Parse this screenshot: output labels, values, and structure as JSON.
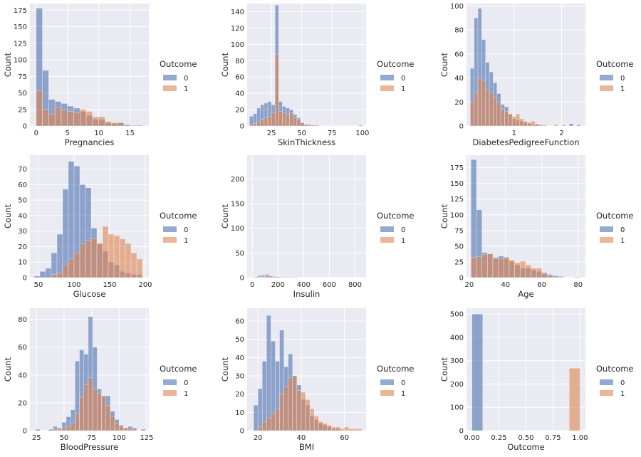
{
  "figure": {
    "type": "histogram-grid",
    "style": {
      "panel_bg": "#EAEAF2",
      "grid": "#FFFFFF",
      "color_0": "#4C72B0",
      "color_1": "#DD8452",
      "bar_alpha": 0.6
    }
  },
  "chart_data": [
    {
      "type": "bar",
      "xlabel": "Pregnancies",
      "ylabel": "Count",
      "xlim": [
        -1,
        18
      ],
      "ylim": [
        0,
        185
      ],
      "xticks": [
        0,
        5,
        10,
        15
      ],
      "yticks": [
        0,
        25,
        50,
        75,
        100,
        125,
        150,
        175
      ],
      "bin_edges": [
        0,
        1,
        2,
        3,
        4,
        5,
        6,
        7,
        8,
        9,
        10,
        11,
        12,
        13,
        14,
        15,
        16,
        17
      ],
      "series": [
        {
          "name": "0",
          "values": [
            178,
            84,
            40,
            37,
            34,
            30,
            27,
            22,
            16,
            10,
            10,
            5,
            4,
            5,
            2,
            0,
            1
          ]
        },
        {
          "name": "1",
          "values": [
            53,
            25,
            18,
            28,
            24,
            22,
            20,
            25,
            22,
            14,
            14,
            7,
            5,
            5,
            0,
            1,
            0
          ]
        }
      ],
      "legend": {
        "title": "Outcome",
        "labels": [
          "0",
          "1"
        ],
        "location": "right"
      }
    },
    {
      "type": "bar",
      "xlabel": "SkinThickness",
      "ylabel": "Count",
      "xlim": [
        5,
        103
      ],
      "ylim": [
        0,
        150
      ],
      "xticks": [
        25,
        50,
        75,
        100
      ],
      "yticks": [
        0,
        20,
        40,
        60,
        80,
        100,
        120,
        140
      ],
      "bin_edges": [
        7,
        10,
        13,
        16,
        19,
        22,
        25,
        28,
        31,
        34,
        37,
        40,
        43,
        46,
        49,
        52,
        55,
        58,
        61,
        64,
        67,
        70,
        73,
        76,
        79,
        82,
        85,
        88,
        91,
        94,
        97,
        100
      ],
      "series": [
        {
          "name": "0",
          "values": [
            12,
            15,
            22,
            26,
            28,
            30,
            26,
            148,
            30,
            24,
            22,
            20,
            14,
            10,
            4,
            2,
            2,
            1,
            1,
            0,
            0,
            0,
            0,
            0,
            0,
            0,
            0,
            0,
            0,
            0,
            1
          ]
        },
        {
          "name": "1",
          "values": [
            1,
            3,
            5,
            8,
            10,
            12,
            16,
            88,
            18,
            16,
            14,
            16,
            10,
            8,
            4,
            2,
            1,
            1,
            0,
            0,
            0,
            0,
            0,
            0,
            0,
            0,
            0,
            0,
            0,
            0,
            0
          ]
        }
      ],
      "legend": {
        "title": "Outcome",
        "labels": [
          "0",
          "1"
        ],
        "location": "right"
      }
    },
    {
      "type": "bar",
      "xlabel": "DiabetesPedigreeFunction",
      "ylabel": "Count",
      "xlim": [
        0,
        2.5
      ],
      "ylim": [
        0,
        102
      ],
      "xticks": [
        1,
        2
      ],
      "yticks": [
        0,
        20,
        40,
        60,
        80,
        100
      ],
      "bin_edges": [
        0.08,
        0.16,
        0.24,
        0.32,
        0.4,
        0.48,
        0.56,
        0.64,
        0.72,
        0.8,
        0.88,
        0.96,
        1.04,
        1.12,
        1.2,
        1.28,
        1.36,
        1.44,
        1.52,
        1.6,
        1.68,
        1.76,
        1.84,
        1.92,
        2.0,
        2.08,
        2.16,
        2.24,
        2.32,
        2.4
      ],
      "series": [
        {
          "name": "0",
          "values": [
            48,
            90,
            98,
            72,
            53,
            45,
            36,
            27,
            18,
            16,
            10,
            6,
            5,
            4,
            3,
            2,
            1,
            1,
            1,
            0,
            0,
            0,
            0,
            0,
            0,
            0,
            2,
            0,
            1
          ]
        },
        {
          "name": "1",
          "values": [
            20,
            28,
            40,
            38,
            30,
            28,
            24,
            20,
            14,
            12,
            10,
            8,
            10,
            6,
            4,
            3,
            4,
            2,
            0,
            1,
            0,
            0,
            1,
            0,
            1,
            0,
            0,
            0,
            0
          ]
        }
      ],
      "legend": {
        "title": "Outcome",
        "labels": [
          "0",
          "1"
        ],
        "location": "right"
      }
    },
    {
      "type": "bar",
      "xlabel": "Glucose",
      "ylabel": "Count",
      "xlim": [
        38,
        205
      ],
      "ylim": [
        0,
        79
      ],
      "xticks": [
        50,
        100,
        150,
        200
      ],
      "yticks": [
        0,
        10,
        20,
        30,
        40,
        50,
        60,
        70
      ],
      "bin_edges": [
        44,
        52,
        60,
        68,
        76,
        84,
        92,
        100,
        108,
        116,
        124,
        132,
        140,
        148,
        156,
        164,
        172,
        180,
        188,
        196
      ],
      "series": [
        {
          "name": "0",
          "values": [
            1,
            4,
            6,
            16,
            28,
            57,
            75,
            72,
            60,
            58,
            32,
            22,
            17,
            10,
            8,
            4,
            3,
            2,
            2
          ]
        },
        {
          "name": "1",
          "values": [
            0,
            0,
            0,
            2,
            3,
            8,
            12,
            16,
            22,
            24,
            25,
            22,
            33,
            28,
            27,
            25,
            22,
            16,
            12
          ]
        }
      ],
      "legend": {
        "title": "Outcome",
        "labels": [
          "0",
          "1"
        ],
        "location": "right"
      }
    },
    {
      "type": "bar",
      "xlabel": "Insulin",
      "ylabel": "Count",
      "xlim": [
        -40,
        886
      ],
      "ylim": [
        0,
        248
      ],
      "xticks": [
        0,
        200,
        400,
        600,
        800
      ],
      "yticks": [
        0,
        50,
        100,
        150,
        200
      ],
      "bin_edges": [
        14,
        30,
        46,
        62,
        78,
        94,
        110,
        126,
        142,
        158,
        174,
        190,
        206,
        222,
        238,
        254,
        270,
        286,
        302,
        318,
        334,
        350
      ],
      "series": [
        {
          "name": "0",
          "values": [
            1,
            2,
            5,
            4,
            6,
            5,
            7,
            4,
            3,
            3,
            2,
            2,
            1,
            1,
            1,
            1,
            1,
            0,
            1,
            0,
            1
          ]
        },
        {
          "name": "1",
          "values": [
            0,
            0,
            1,
            1,
            2,
            2,
            3,
            3,
            3,
            2,
            2,
            2,
            2,
            1,
            1,
            1,
            1,
            1,
            0,
            1,
            0
          ]
        }
      ],
      "legend": {
        "title": "Outcome",
        "labels": [
          "0",
          "1"
        ],
        "location": "right"
      }
    },
    {
      "type": "bar",
      "xlabel": "Age",
      "ylabel": "Count",
      "xlim": [
        18.5,
        84
      ],
      "ylim": [
        0,
        195
      ],
      "xticks": [
        20,
        40,
        60,
        80
      ],
      "yticks": [
        0,
        25,
        50,
        75,
        100,
        125,
        150,
        175
      ],
      "bin_edges": [
        21,
        24,
        27,
        30,
        33,
        36,
        39,
        42,
        45,
        48,
        51,
        54,
        57,
        60,
        63,
        66,
        69,
        72,
        75,
        78,
        81
      ],
      "series": [
        {
          "name": "0",
          "values": [
            188,
            108,
            40,
            38,
            32,
            34,
            30,
            26,
            20,
            15,
            15,
            12,
            10,
            8,
            5,
            3,
            2,
            0,
            0,
            1
          ]
        },
        {
          "name": "1",
          "values": [
            32,
            33,
            37,
            38,
            30,
            30,
            33,
            28,
            24,
            26,
            20,
            15,
            15,
            6,
            3,
            1,
            1,
            0,
            0,
            0
          ]
        }
      ],
      "legend": {
        "title": "Outcome",
        "labels": [
          "0",
          "1"
        ],
        "location": "right"
      }
    },
    {
      "type": "bar",
      "xlabel": "BloodPressure",
      "ylabel": "Count",
      "xlim": [
        19,
        127
      ],
      "ylim": [
        0,
        88
      ],
      "xticks": [
        25,
        50,
        75,
        100,
        125
      ],
      "yticks": [
        0,
        20,
        40,
        60,
        80
      ],
      "bin_edges": [
        24,
        28,
        32,
        36,
        40,
        44,
        48,
        52,
        56,
        60,
        64,
        68,
        72,
        76,
        80,
        84,
        88,
        92,
        96,
        100,
        104,
        108,
        112,
        116,
        120,
        124
      ],
      "series": [
        {
          "name": "0",
          "values": [
            1,
            0,
            0,
            1,
            3,
            2,
            6,
            10,
            15,
            50,
            58,
            55,
            82,
            60,
            30,
            25,
            25,
            14,
            8,
            4,
            2,
            3,
            2,
            0,
            1
          ]
        },
        {
          "name": "1",
          "values": [
            0,
            0,
            0,
            0,
            1,
            1,
            2,
            3,
            5,
            12,
            24,
            33,
            38,
            30,
            27,
            25,
            18,
            10,
            5,
            3,
            2,
            1,
            1,
            0,
            1
          ]
        }
      ],
      "legend": {
        "title": "Outcome",
        "labels": [
          "0",
          "1"
        ],
        "location": "right"
      }
    },
    {
      "type": "bar",
      "xlabel": "BMI",
      "ylabel": "Count",
      "xlim": [
        15,
        70
      ],
      "ylim": [
        0,
        67
      ],
      "xticks": [
        20,
        40,
        60
      ],
      "yticks": [
        0,
        10,
        20,
        30,
        40,
        50,
        60
      ],
      "bin_edges": [
        18,
        20,
        22,
        24,
        26,
        28,
        30,
        32,
        34,
        36,
        38,
        40,
        42,
        44,
        46,
        48,
        50,
        52,
        54,
        56,
        58,
        60,
        62,
        64,
        66,
        68
      ],
      "series": [
        {
          "name": "0",
          "values": [
            14,
            23,
            38,
            63,
            49,
            38,
            55,
            35,
            42,
            30,
            25,
            17,
            14,
            8,
            6,
            4,
            3,
            2,
            1,
            1,
            0,
            0,
            0,
            0,
            0
          ]
        },
        {
          "name": "1",
          "values": [
            0,
            2,
            5,
            7,
            9,
            12,
            20,
            24,
            29,
            30,
            22,
            21,
            17,
            12,
            8,
            5,
            4,
            3,
            2,
            2,
            1,
            2,
            1,
            1,
            1
          ]
        }
      ],
      "legend": {
        "title": "Outcome",
        "labels": [
          "0",
          "1"
        ],
        "location": "right"
      }
    },
    {
      "type": "bar",
      "xlabel": "Outcome",
      "ylabel": "Count",
      "xlim": [
        -0.05,
        1.05
      ],
      "ylim": [
        0,
        525
      ],
      "xticks": [
        0.0,
        0.25,
        0.5,
        0.75,
        1.0
      ],
      "xticklabels": [
        "0.00",
        "0.25",
        "0.50",
        "0.75",
        "1.00"
      ],
      "yticks": [
        0,
        100,
        200,
        300,
        400,
        500
      ],
      "bin_edges": [
        0,
        0.1,
        0.9,
        1.0
      ],
      "series": [
        {
          "name": "0",
          "values": [
            500,
            0,
            0
          ]
        },
        {
          "name": "1",
          "values": [
            0,
            0,
            268
          ]
        }
      ],
      "legend": {
        "title": "Outcome",
        "labels": [
          "0",
          "1"
        ],
        "location": "right"
      }
    }
  ]
}
